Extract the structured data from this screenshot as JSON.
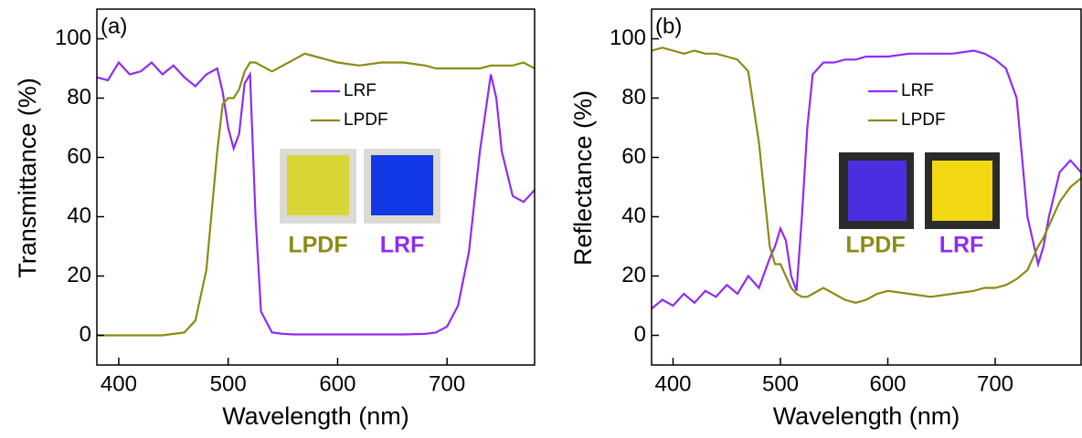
{
  "chart_data": [
    {
      "type": "line",
      "panel_label": "(a)",
      "x_label": "Wavelength (nm)",
      "y_label": "Transmittance (%)",
      "x": [
        380,
        390,
        400,
        410,
        420,
        430,
        440,
        450,
        460,
        470,
        480,
        490,
        495,
        500,
        505,
        510,
        515,
        520,
        525,
        530,
        540,
        550,
        560,
        570,
        580,
        590,
        600,
        620,
        640,
        660,
        680,
        690,
        700,
        710,
        720,
        730,
        740,
        745,
        750,
        760,
        770,
        780
      ],
      "series": [
        {
          "name": "LRF",
          "color": "#8f2cf2",
          "values": [
            87,
            86,
            92,
            88,
            89,
            92,
            88,
            91,
            87,
            84,
            88,
            90,
            82,
            70,
            63,
            68,
            85,
            88,
            40,
            8,
            1,
            0.5,
            0.3,
            0.3,
            0.3,
            0.3,
            0.3,
            0.3,
            0.3,
            0.3,
            0.5,
            1,
            3,
            10,
            28,
            62,
            88,
            80,
            62,
            47,
            45,
            49
          ]
        },
        {
          "name": "LPDF",
          "color": "#8b8b14",
          "values": [
            0,
            0,
            0,
            0,
            0,
            0,
            0,
            0.5,
            1,
            5,
            22,
            62,
            78,
            80,
            80,
            83,
            89,
            92,
            92,
            91,
            89,
            91,
            93,
            95,
            94,
            93,
            92,
            91,
            92,
            92,
            91,
            90,
            90,
            90,
            90,
            90,
            91,
            91,
            91,
            91,
            92,
            90
          ]
        }
      ],
      "annotations": [
        {
          "text": "LPDF",
          "color": "#8b8b14"
        },
        {
          "text": "LRF",
          "color": "#8f2cf2"
        }
      ],
      "xlim": [
        380,
        780
      ],
      "ylim": [
        -10,
        110
      ],
      "xticks": [
        400,
        500,
        600,
        700
      ],
      "yticks": [
        0,
        20,
        40,
        60,
        80,
        100
      ]
    },
    {
      "type": "line",
      "panel_label": "(b)",
      "x_label": "Wavelength (nm)",
      "y_label": "Reflectance (%)",
      "x": [
        380,
        390,
        400,
        410,
        420,
        430,
        440,
        450,
        460,
        470,
        480,
        490,
        495,
        500,
        505,
        510,
        515,
        520,
        525,
        530,
        540,
        550,
        560,
        570,
        580,
        590,
        600,
        620,
        640,
        660,
        680,
        690,
        700,
        710,
        720,
        730,
        740,
        745,
        750,
        760,
        770,
        780
      ],
      "series": [
        {
          "name": "LRF",
          "color": "#8f2cf2",
          "values": [
            9,
            12,
            10,
            14,
            11,
            15,
            13,
            17,
            14,
            20,
            16,
            26,
            30,
            36,
            32,
            20,
            15,
            40,
            70,
            88,
            92,
            92,
            93,
            93,
            94,
            94,
            94,
            95,
            95,
            95,
            96,
            95,
            93,
            90,
            80,
            40,
            24,
            30,
            40,
            55,
            59,
            55
          ]
        },
        {
          "name": "LPDF",
          "color": "#8b8b14",
          "values": [
            96,
            97,
            96,
            95,
            96,
            95,
            95,
            94,
            93,
            89,
            65,
            30,
            24,
            24,
            20,
            16,
            14,
            13,
            13,
            14,
            16,
            14,
            12,
            11,
            12,
            14,
            15,
            14,
            13,
            14,
            15,
            16,
            16,
            17,
            19,
            22,
            30,
            33,
            37,
            45,
            50,
            53
          ]
        }
      ],
      "annotations": [
        {
          "text": "LPDF",
          "color": "#8b8b14"
        },
        {
          "text": "LRF",
          "color": "#8f2cf2"
        }
      ],
      "xlim": [
        380,
        780
      ],
      "ylim": [
        -10,
        110
      ],
      "xticks": [
        400,
        500,
        600,
        700
      ],
      "yticks": [
        0,
        20,
        40,
        60,
        80,
        100
      ]
    }
  ]
}
